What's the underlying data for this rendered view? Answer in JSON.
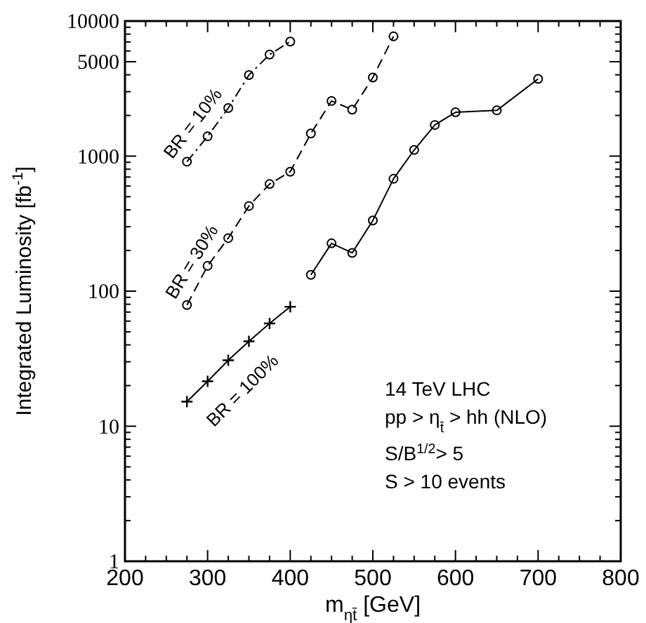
{
  "chart_data": {
    "type": "line",
    "xlabel": "m$_{ηt̄}$ [GeV]",
    "ylabel": "Integrated Luminosity  [fb$^{-1}$]",
    "log": "y",
    "grid": false,
    "xlim": [
      200,
      800
    ],
    "ylim": [
      1,
      10000
    ],
    "xticks": [
      200,
      {
        "value": 225,
        "label": null
      },
      {
        "value": 250,
        "label": null
      },
      {
        "value": 275,
        "label": null
      },
      300,
      {
        "value": 325,
        "label": null
      },
      {
        "value": 350,
        "label": null
      },
      {
        "value": 375,
        "label": null
      },
      400,
      {
        "value": 425,
        "label": null
      },
      {
        "value": 450,
        "label": null
      },
      {
        "value": 475,
        "label": null
      },
      500,
      {
        "value": 525,
        "label": null
      },
      {
        "value": 550,
        "label": null
      },
      {
        "value": 575,
        "label": null
      },
      600,
      {
        "value": 625,
        "label": null
      },
      {
        "value": 650,
        "label": null
      },
      {
        "value": 675,
        "label": null
      },
      700,
      {
        "value": 725,
        "label": null
      },
      {
        "value": 750,
        "label": null
      },
      {
        "value": 775,
        "label": null
      },
      800
    ],
    "yticks": [
      1,
      {
        "value": 2,
        "label": null
      },
      {
        "value": 3,
        "label": null
      },
      {
        "value": 4,
        "label": null
      },
      {
        "value": 5,
        "label": null
      },
      {
        "value": 6,
        "label": null
      },
      {
        "value": 7,
        "label": null
      },
      {
        "value": 8,
        "label": null
      },
      {
        "value": 9,
        "label": null
      },
      10,
      {
        "value": 20,
        "label": null
      },
      {
        "value": 30,
        "label": null
      },
      {
        "value": 40,
        "label": null
      },
      {
        "value": 50,
        "label": null
      },
      {
        "value": 60,
        "label": null
      },
      {
        "value": 70,
        "label": null
      },
      {
        "value": 80,
        "label": null
      },
      {
        "value": 90,
        "label": null
      },
      100,
      {
        "value": 200,
        "label": null
      },
      {
        "value": 300,
        "label": null
      },
      {
        "value": 400,
        "label": null
      },
      {
        "value": 500,
        "label": null
      },
      {
        "value": 600,
        "label": null
      },
      {
        "value": 700,
        "label": null
      },
      {
        "value": 800,
        "label": null
      },
      {
        "value": 900,
        "label": null
      },
      1000,
      {
        "value": 2000,
        "label": null
      },
      {
        "value": 3000,
        "label": null
      },
      {
        "value": 4000,
        "label": null
      },
      5000,
      {
        "value": 6000,
        "label": null
      },
      {
        "value": 7000,
        "label": null
      },
      {
        "value": 8000,
        "label": null
      },
      {
        "value": 9000,
        "label": null
      },
      10000
    ],
    "series": [
      {
        "name": "BR = 10%",
        "color": "#000000",
        "marker": "circle",
        "line_style": "dotted",
        "x": [
          275,
          300,
          325,
          350,
          375,
          400
        ],
        "values": [
          910,
          1400,
          2270,
          3980,
          5650,
          7050
        ]
      },
      {
        "name": "BR = 30%",
        "color": "#000000",
        "marker": "circle",
        "line_style": "dashed",
        "x": [
          275,
          300,
          325,
          350,
          375,
          400,
          425,
          450,
          475,
          500,
          525
        ],
        "values": [
          79,
          154,
          247,
          427,
          621,
          767,
          1470,
          2560,
          2210,
          3820,
          7700
        ]
      },
      {
        "name": "BR = 100%",
        "color": "#000000",
        "marker": "cross",
        "line_style": "solid",
        "x": [
          275,
          300,
          325,
          350,
          375,
          400
        ],
        "values": [
          15.2,
          21.5,
          30.8,
          42.5,
          57.7,
          76.6
        ]
      },
      {
        "color": "#000000",
        "marker": "circle",
        "line_style": "solid",
        "x": [
          425,
          450,
          475,
          500,
          525,
          550,
          575,
          600,
          650,
          700
        ],
        "values": [
          132,
          226,
          192,
          334,
          679,
          1110,
          1700,
          2110,
          2180,
          3730
        ]
      }
    ],
    "annotations": [
      "14 TeV LHC",
      "pp > η$_{t̄}$ > hh  (NLO)",
      "S/B$^{1/2}$> 5",
      "S > 10 events"
    ]
  }
}
